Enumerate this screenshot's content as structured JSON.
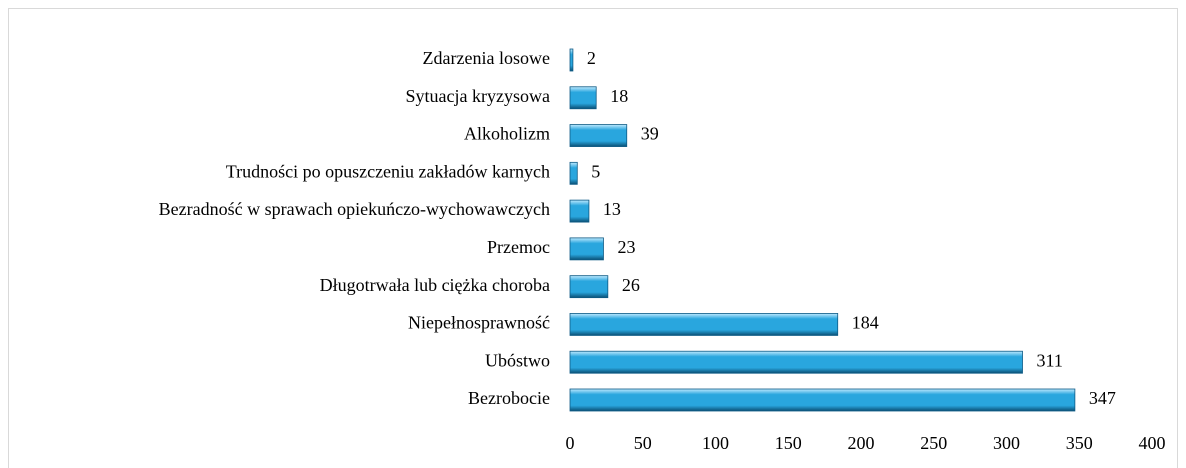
{
  "chart_data": {
    "type": "barh",
    "categories": [
      "Zdarzenia losowe",
      "Sytuacja kryzysowa",
      "Alkoholizm",
      "Trudności po opuszczeniu zakładów karnych",
      "Bezradność w sprawach opiekuńczo-wychowawczych",
      "Przemoc",
      "Długotrwała lub ciężka choroba",
      "Niepełnosprawność",
      "Ubóstwo",
      "Bezrobocie"
    ],
    "values": [
      2,
      18,
      39,
      5,
      13,
      23,
      26,
      184,
      311,
      347
    ],
    "color": "#29a6de",
    "xlim": [
      0,
      400
    ],
    "xticks": [
      0,
      50,
      100,
      150,
      200,
      250,
      300,
      350,
      400
    ],
    "grid": false
  }
}
